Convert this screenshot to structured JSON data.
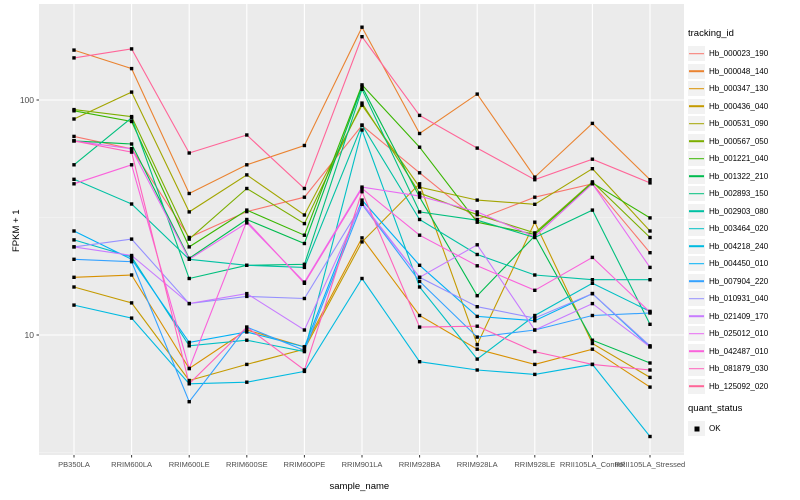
{
  "chart_data": {
    "type": "line",
    "title": "",
    "xlabel": "sample_name",
    "ylabel": "FPKM + 1",
    "y_scale": "log10",
    "y_ticks": [
      "100",
      "10"
    ],
    "y_range_approx": [
      3.1,
      256
    ],
    "grid": "on",
    "legend_position": "right",
    "legend_title": "tracking_id",
    "legend2_title": "quant_status",
    "quant_status": {
      "label": "OK",
      "marker": "black-square"
    },
    "point_marker": "black-square",
    "categories": [
      "PB350LA",
      "RRIM600LA",
      "RRIM600LE",
      "RRIM600SE",
      "RRIM600PE",
      "RRIM901LA",
      "RRIM928BA",
      "RRIM928LA",
      "RRIM928LE",
      "RRII105LA_Control",
      "RRII105LA_Stressed"
    ],
    "series": [
      {
        "name": "Hb_000023_190",
        "color": "#F8766D",
        "values": [
          70,
          62,
          26,
          33.5,
          38.6,
          78,
          49,
          31,
          38.6,
          44,
          22.4
        ]
      },
      {
        "name": "Hb_000048_140",
        "color": "#EA8331",
        "values": [
          163,
          136,
          40,
          53,
          64,
          204,
          72,
          106,
          47,
          79.5,
          45.8
        ]
      },
      {
        "name": "Hb_000347_130",
        "color": "#D89000",
        "values": [
          17.6,
          18,
          7.2,
          10.5,
          8.9,
          25.9,
          12.1,
          8.7,
          7.5,
          8.7,
          6.0
        ]
      },
      {
        "name": "Hb_000436_040",
        "color": "#C49A00",
        "values": [
          16,
          13.7,
          6.4,
          7.5,
          8.7,
          24.9,
          44,
          9.1,
          30.2,
          9.2,
          6.6
        ]
      },
      {
        "name": "Hb_000531_090",
        "color": "#A3A500",
        "values": [
          83,
          108,
          33.4,
          48,
          32.4,
          95,
          42.6,
          37.5,
          36,
          51,
          27.7
        ]
      },
      {
        "name": "Hb_000567_050",
        "color": "#7CAE00",
        "values": [
          91,
          85,
          25.6,
          42,
          29.8,
          97,
          40.2,
          32.5,
          27.2,
          44.8,
          26
        ]
      },
      {
        "name": "Hb_001221_040",
        "color": "#39B600",
        "values": [
          90,
          81,
          23.7,
          34,
          26.6,
          116,
          63,
          30.2,
          26.8,
          44.4,
          31.5
        ]
      },
      {
        "name": "Hb_001322_210",
        "color": "#00BB4E",
        "values": [
          67,
          65,
          21.2,
          31,
          24.5,
          114,
          38.6,
          14.7,
          26.4,
          9.5,
          7.6
        ]
      },
      {
        "name": "Hb_002893_150",
        "color": "#00BF7D",
        "values": [
          53,
          84,
          17.4,
          19.8,
          20,
          111,
          33.4,
          30.8,
          26,
          34,
          11.1
        ]
      },
      {
        "name": "Hb_002903_080",
        "color": "#00C1A3",
        "values": [
          46,
          36.1,
          21,
          19.8,
          19.4,
          78.3,
          31,
          22,
          18,
          17.2,
          17.2
        ]
      },
      {
        "name": "Hb_003464_020",
        "color": "#00BFC4",
        "values": [
          25.4,
          21.5,
          9.0,
          9.5,
          8.5,
          74.5,
          16,
          7.9,
          12.1,
          16.6,
          12.6
        ]
      },
      {
        "name": "Hb_004218_240",
        "color": "#00BAE0",
        "values": [
          13.4,
          11.8,
          6.2,
          6.3,
          7.0,
          17.4,
          7.7,
          7.1,
          6.8,
          7.5,
          3.7
        ]
      },
      {
        "name": "Hb_004450_010",
        "color": "#00B0F6",
        "values": [
          27.7,
          21,
          9.3,
          10.3,
          8.9,
          37.5,
          19.8,
          12,
          11.5,
          15,
          8.9
        ]
      },
      {
        "name": "Hb_007904_220",
        "color": "#35A2FF",
        "values": [
          21,
          20.5,
          5.2,
          10.8,
          8.6,
          36,
          16.9,
          9.8,
          10.5,
          12.1,
          12.4
        ]
      },
      {
        "name": "Hb_010931_040",
        "color": "#9590FF",
        "values": [
          23.7,
          25.6,
          13.6,
          14.6,
          14.3,
          36,
          17.6,
          13.2,
          11.8,
          15,
          9.0
        ]
      },
      {
        "name": "Hb_021409_170",
        "color": "#C77CFF",
        "values": [
          23.7,
          21.8,
          13.6,
          15,
          10.5,
          36.5,
          17.6,
          24.2,
          10.5,
          13.6,
          8.9
        ]
      },
      {
        "name": "Hb_025012_010",
        "color": "#E76BF3",
        "values": [
          67,
          62,
          21,
          30,
          16.8,
          42.6,
          39,
          33.4,
          26.2,
          44,
          19.4
        ]
      },
      {
        "name": "Hb_042487_010",
        "color": "#FA62DB",
        "values": [
          44,
          53,
          7.2,
          30.5,
          16.6,
          42,
          26.6,
          19.7,
          15.5,
          21.4,
          12.5
        ]
      },
      {
        "name": "Hb_081879_030",
        "color": "#FF62BC",
        "values": [
          67,
          60,
          6.2,
          10.8,
          7.1,
          40.7,
          10.8,
          10.9,
          8.5,
          7.5,
          7.1
        ]
      },
      {
        "name": "Hb_125092_020",
        "color": "#FF6598",
        "values": [
          151,
          165,
          59.5,
          71,
          42,
          186,
          86,
          62.4,
          45.8,
          56,
          44.4
        ]
      }
    ],
    "colors": {
      "panel_bg": "#EBEBEB",
      "grid_major": "#FFFFFF",
      "grid_minor": "#F5F5F5",
      "tick_text": "#4D4D4D",
      "tick_mark": "#333333",
      "point": "#000000",
      "legend_key_bg": "#F2F2F2"
    }
  }
}
